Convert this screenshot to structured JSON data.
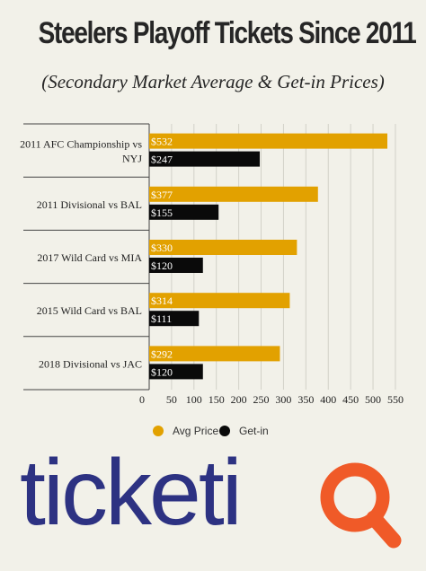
{
  "chart_data": {
    "type": "bar",
    "orientation": "horizontal",
    "title": "Steelers Playoff Tickets Since 2011",
    "subtitle": "(Secondary Market Average & Get-in Prices)",
    "categories": [
      "2011 AFC Championship vs NYJ",
      "2011 Divisional vs BAL",
      "2017 Wild Card vs MIA",
      "2015 Wild Card vs BAL",
      "2018 Divisional vs JAC"
    ],
    "series": [
      {
        "name": "Avg Price",
        "color": "#e2a100",
        "values": [
          532,
          377,
          330,
          314,
          292
        ],
        "labels": [
          "$532",
          "$377",
          "$330",
          "$314",
          "$292"
        ]
      },
      {
        "name": "Get-in",
        "color": "#0a0a0a",
        "values": [
          247,
          155,
          120,
          111,
          120
        ],
        "labels": [
          "$247",
          "$155",
          "$120",
          "$111",
          "$120"
        ]
      }
    ],
    "xlim": [
      0,
      550
    ],
    "xticks": [
      0,
      50,
      100,
      150,
      200,
      250,
      300,
      350,
      400,
      450,
      500,
      550
    ],
    "grid": true,
    "legend_position": "bottom"
  },
  "logo": {
    "text": "ticketiQ",
    "main_color": "#2d3282",
    "accent_color": "#f05a28"
  }
}
